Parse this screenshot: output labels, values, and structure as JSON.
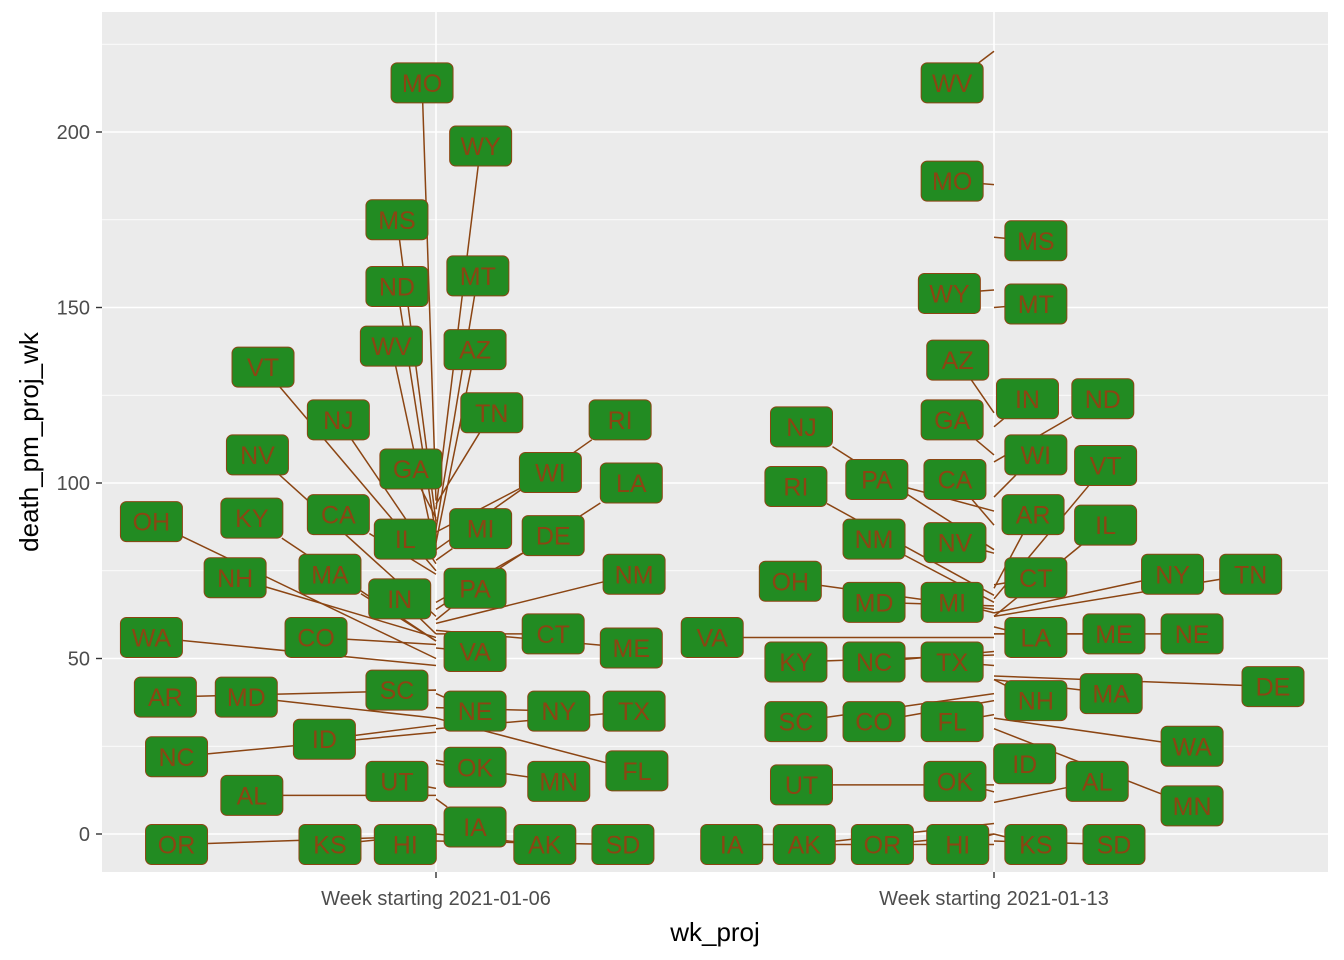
{
  "chart_data": {
    "type": "scatter",
    "title": "",
    "xlabel": "wk_proj",
    "ylabel": "death_pm_proj_wk",
    "categories": [
      "Week starting 2021-01-06",
      "Week starting 2021-01-13"
    ],
    "y_ticks": [
      0,
      50,
      100,
      150,
      200
    ],
    "ylim": [
      -11,
      225
    ],
    "grid": true,
    "colors": {
      "panel": "#ebebeb",
      "grid": "#ffffff",
      "label_fill": "#228b22",
      "label_text": "#8b4513",
      "segment": "#8b4513",
      "label_border": "#8b4513"
    },
    "series": [
      {
        "name": "Week starting 2021-01-06",
        "points": [
          {
            "state": "MO",
            "value": 95.0,
            "label_x": -0.025,
            "label_y": 214
          },
          {
            "state": "WY",
            "value": 92.5,
            "label_x": 0.08,
            "label_y": 196
          },
          {
            "state": "MS",
            "value": 89.0,
            "label_x": -0.07,
            "label_y": 175
          },
          {
            "state": "ND",
            "value": 85.0,
            "label_x": -0.07,
            "label_y": 156
          },
          {
            "state": "MT",
            "value": 87.0,
            "label_x": 0.075,
            "label_y": 159
          },
          {
            "state": "WV",
            "value": 80.0,
            "label_x": -0.08,
            "label_y": 139
          },
          {
            "state": "AZ",
            "value": 83.0,
            "label_x": 0.07,
            "label_y": 138
          },
          {
            "state": "VT",
            "value": 75.0,
            "label_x": -0.31,
            "label_y": 133
          },
          {
            "state": "TN",
            "value": 94.0,
            "label_x": 0.1,
            "label_y": 120
          },
          {
            "state": "NJ",
            "value": 77.0,
            "label_x": -0.175,
            "label_y": 118
          },
          {
            "state": "RI",
            "value": 81.0,
            "label_x": 0.33,
            "label_y": 118
          },
          {
            "state": "NV",
            "value": 62.0,
            "label_x": -0.32,
            "label_y": 108
          },
          {
            "state": "GA",
            "value": 90.0,
            "label_x": -0.045,
            "label_y": 104
          },
          {
            "state": "WI",
            "value": 86.0,
            "label_x": 0.205,
            "label_y": 103
          },
          {
            "state": "LA",
            "value": 64.0,
            "label_x": 0.35,
            "label_y": 100
          },
          {
            "state": "OH",
            "value": 50.0,
            "label_x": -0.51,
            "label_y": 89
          },
          {
            "state": "KY",
            "value": 55.0,
            "label_x": -0.33,
            "label_y": 90
          },
          {
            "state": "CA",
            "value": 74.0,
            "label_x": -0.175,
            "label_y": 91
          },
          {
            "state": "MI",
            "value": 78.0,
            "label_x": 0.08,
            "label_y": 87
          },
          {
            "state": "IL",
            "value": 80.0,
            "label_x": -0.055,
            "label_y": 84
          },
          {
            "state": "DE",
            "value": 66.0,
            "label_x": 0.21,
            "label_y": 85
          },
          {
            "state": "NH",
            "value": 56.0,
            "label_x": -0.36,
            "label_y": 73
          },
          {
            "state": "MA",
            "value": 55.0,
            "label_x": -0.19,
            "label_y": 74
          },
          {
            "state": "NM",
            "value": 60.0,
            "label_x": 0.355,
            "label_y": 74
          },
          {
            "state": "PA",
            "value": 61.0,
            "label_x": 0.07,
            "label_y": 70
          },
          {
            "state": "IN",
            "value": 57.0,
            "label_x": -0.065,
            "label_y": 67
          },
          {
            "state": "WA",
            "value": 48.0,
            "label_x": -0.51,
            "label_y": 56
          },
          {
            "state": "CO",
            "value": 54.0,
            "label_x": -0.215,
            "label_y": 56
          },
          {
            "state": "CT",
            "value": 57.0,
            "label_x": 0.21,
            "label_y": 57
          },
          {
            "state": "ME",
            "value": 58.0,
            "label_x": 0.35,
            "label_y": 53
          },
          {
            "state": "VA",
            "value": 53.0,
            "label_x": 0.07,
            "label_y": 52
          },
          {
            "state": "SC",
            "value": 41.0,
            "label_x": -0.07,
            "label_y": 41
          },
          {
            "state": "AR",
            "value": 41.0,
            "label_x": -0.485,
            "label_y": 39
          },
          {
            "state": "MD",
            "value": 33.0,
            "label_x": -0.34,
            "label_y": 39
          },
          {
            "state": "NE",
            "value": 40.0,
            "label_x": 0.07,
            "label_y": 35
          },
          {
            "state": "NY",
            "value": 36.0,
            "label_x": 0.22,
            "label_y": 35
          },
          {
            "state": "TX",
            "value": 30.0,
            "label_x": 0.355,
            "label_y": 35
          },
          {
            "state": "ID",
            "value": 31.0,
            "label_x": -0.2,
            "label_y": 27
          },
          {
            "state": "NC",
            "value": 29.0,
            "label_x": -0.465,
            "label_y": 22
          },
          {
            "state": "FL",
            "value": 33.0,
            "label_x": 0.36,
            "label_y": 18
          },
          {
            "state": "OK",
            "value": 21.0,
            "label_x": 0.07,
            "label_y": 19
          },
          {
            "state": "MN",
            "value": 20.0,
            "label_x": 0.22,
            "label_y": 15
          },
          {
            "state": "UT",
            "value": 13.0,
            "label_x": -0.07,
            "label_y": 15
          },
          {
            "state": "AL",
            "value": 11.0,
            "label_x": -0.33,
            "label_y": 11
          },
          {
            "state": "IA",
            "value": 10.0,
            "label_x": 0.07,
            "label_y": 2
          },
          {
            "state": "OR",
            "value": -0.5,
            "label_x": -0.465,
            "label_y": -3
          },
          {
            "state": "KS",
            "value": 0.0,
            "label_x": -0.19,
            "label_y": -3
          },
          {
            "state": "HI",
            "value": 0.0,
            "label_x": -0.055,
            "label_y": -3
          },
          {
            "state": "AK",
            "value": 0.0,
            "label_x": 0.195,
            "label_y": -3
          },
          {
            "state": "SD",
            "value": -2.0,
            "label_x": 0.335,
            "label_y": -3
          }
        ]
      },
      {
        "name": "Week starting 2021-01-13",
        "points": [
          {
            "state": "WV",
            "value": 223.0,
            "label_x": -0.075,
            "label_y": 214
          },
          {
            "state": "MO",
            "value": 185.0,
            "label_x": -0.075,
            "label_y": 186
          },
          {
            "state": "MS",
            "value": 170.0,
            "label_x": 0.075,
            "label_y": 169
          },
          {
            "state": "WY",
            "value": 155.0,
            "label_x": -0.08,
            "label_y": 154
          },
          {
            "state": "MT",
            "value": 150.0,
            "label_x": 0.075,
            "label_y": 151
          },
          {
            "state": "AZ",
            "value": 120.0,
            "label_x": -0.065,
            "label_y": 135
          },
          {
            "state": "IN",
            "value": 116.0,
            "label_x": 0.06,
            "label_y": 124
          },
          {
            "state": "ND",
            "value": 106.0,
            "label_x": 0.195,
            "label_y": 124
          },
          {
            "state": "NJ",
            "value": 81.0,
            "label_x": -0.345,
            "label_y": 116
          },
          {
            "state": "GA",
            "value": 108.0,
            "label_x": -0.075,
            "label_y": 118
          },
          {
            "state": "WI",
            "value": 96.0,
            "label_x": 0.075,
            "label_y": 108
          },
          {
            "state": "VT",
            "value": 67.0,
            "label_x": 0.2,
            "label_y": 105
          },
          {
            "state": "RI",
            "value": 68.0,
            "label_x": -0.355,
            "label_y": 99
          },
          {
            "state": "PA",
            "value": 92.0,
            "label_x": -0.21,
            "label_y": 101
          },
          {
            "state": "CA",
            "value": 88.0,
            "label_x": -0.07,
            "label_y": 101
          },
          {
            "state": "AR",
            "value": 70.0,
            "label_x": 0.07,
            "label_y": 91
          },
          {
            "state": "IL",
            "value": 62.0,
            "label_x": 0.2,
            "label_y": 88
          },
          {
            "state": "NM",
            "value": 66.0,
            "label_x": -0.215,
            "label_y": 84
          },
          {
            "state": "NV",
            "value": 80.0,
            "label_x": -0.07,
            "label_y": 83
          },
          {
            "state": "NY",
            "value": 63.0,
            "label_x": 0.32,
            "label_y": 74
          },
          {
            "state": "TN",
            "value": 62.0,
            "label_x": 0.46,
            "label_y": 74
          },
          {
            "state": "CT",
            "value": 71.0,
            "label_x": 0.075,
            "label_y": 73
          },
          {
            "state": "OH",
            "value": 64.0,
            "label_x": -0.365,
            "label_y": 72
          },
          {
            "state": "MD",
            "value": 65.0,
            "label_x": -0.215,
            "label_y": 66
          },
          {
            "state": "MI",
            "value": 63.0,
            "label_x": -0.075,
            "label_y": 66
          },
          {
            "state": "LA",
            "value": 59.0,
            "label_x": 0.075,
            "label_y": 56
          },
          {
            "state": "ME",
            "value": 57.0,
            "label_x": 0.215,
            "label_y": 57
          },
          {
            "state": "NE",
            "value": 57.0,
            "label_x": 0.355,
            "label_y": 57
          },
          {
            "state": "VA",
            "value": 56.0,
            "label_x": -0.505,
            "label_y": 56
          },
          {
            "state": "KY",
            "value": 51.0,
            "label_x": -0.355,
            "label_y": 49
          },
          {
            "state": "NC",
            "value": 52.0,
            "label_x": -0.215,
            "label_y": 49
          },
          {
            "state": "TX",
            "value": 48.0,
            "label_x": -0.075,
            "label_y": 49
          },
          {
            "state": "DE",
            "value": 45.0,
            "label_x": 0.5,
            "label_y": 42
          },
          {
            "state": "NH",
            "value": 44.0,
            "label_x": 0.075,
            "label_y": 38
          },
          {
            "state": "MA",
            "value": 44.0,
            "label_x": 0.21,
            "label_y": 40
          },
          {
            "state": "SC",
            "value": 40.0,
            "label_x": -0.355,
            "label_y": 32
          },
          {
            "state": "CO",
            "value": 38.0,
            "label_x": -0.215,
            "label_y": 32
          },
          {
            "state": "FL",
            "value": 34.0,
            "label_x": -0.075,
            "label_y": 32
          },
          {
            "state": "WA",
            "value": 33.0,
            "label_x": 0.355,
            "label_y": 25
          },
          {
            "state": "ID",
            "value": 25.0,
            "label_x": 0.055,
            "label_y": 20
          },
          {
            "state": "AL",
            "value": 9.0,
            "label_x": 0.185,
            "label_y": 15
          },
          {
            "state": "UT",
            "value": 14.0,
            "label_x": -0.345,
            "label_y": 14
          },
          {
            "state": "OK",
            "value": 12.0,
            "label_x": -0.07,
            "label_y": 15
          },
          {
            "state": "MN",
            "value": 30.0,
            "label_x": 0.355,
            "label_y": 8
          },
          {
            "state": "IA",
            "value": -3.0,
            "label_x": -0.47,
            "label_y": -3
          },
          {
            "state": "AK",
            "value": 3.0,
            "label_x": -0.34,
            "label_y": -3
          },
          {
            "state": "OR",
            "value": 0.0,
            "label_x": -0.2,
            "label_y": -3
          },
          {
            "state": "HI",
            "value": 0.0,
            "label_x": -0.065,
            "label_y": -3
          },
          {
            "state": "KS",
            "value": 0.0,
            "label_x": 0.075,
            "label_y": -3
          },
          {
            "state": "SD",
            "value": -2.0,
            "label_x": 0.215,
            "label_y": -3
          }
        ]
      }
    ]
  }
}
